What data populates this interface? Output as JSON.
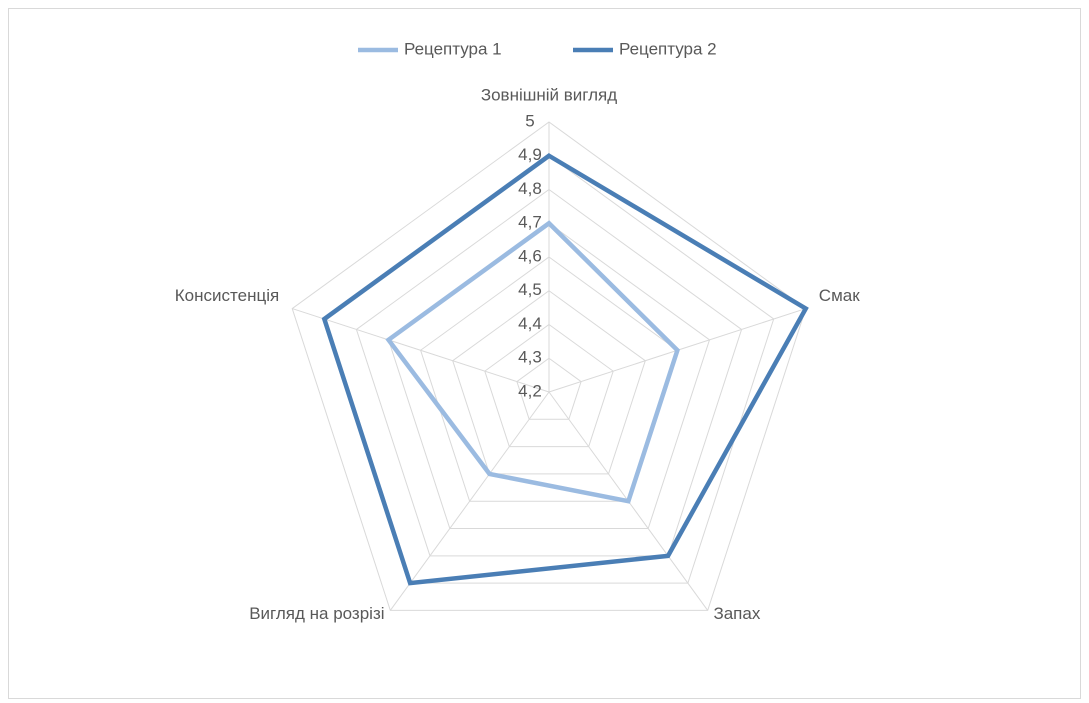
{
  "chart_data": {
    "type": "radar",
    "categories": [
      "Зовнішній вигляд",
      "Смак",
      "Запах",
      "Вигляд на розрізі",
      "Консистенція"
    ],
    "series": [
      {
        "name": "Рецептура 1",
        "color": "#9bbbe1",
        "values": [
          4.7,
          4.6,
          4.6,
          4.5,
          4.7
        ]
      },
      {
        "name": "Рецептура 2",
        "color": "#4a7eb5",
        "values": [
          4.9,
          5.0,
          4.8,
          4.9,
          4.9
        ]
      }
    ],
    "ylim": [
      4.2,
      5
    ],
    "yticks": [
      {
        "value": 4.2,
        "label": "4,2"
      },
      {
        "value": 4.3,
        "label": "4,3"
      },
      {
        "value": 4.4,
        "label": "4,4"
      },
      {
        "value": 4.5,
        "label": "4,5"
      },
      {
        "value": 4.6,
        "label": "4,6"
      },
      {
        "value": 4.7,
        "label": "4,7"
      },
      {
        "value": 4.8,
        "label": "4,8"
      },
      {
        "value": 4.9,
        "label": "4,9"
      },
      {
        "value": 5,
        "label": "5"
      }
    ],
    "grid": true,
    "legend": "top"
  }
}
